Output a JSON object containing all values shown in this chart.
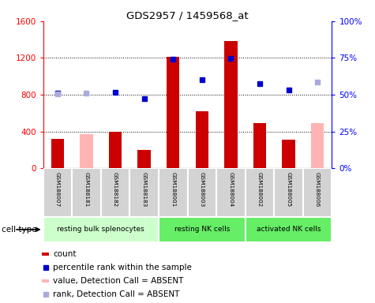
{
  "title": "GDS2957 / 1459568_at",
  "samples": [
    "GSM188007",
    "GSM188181",
    "GSM188182",
    "GSM188183",
    "GSM188001",
    "GSM188003",
    "GSM188004",
    "GSM188002",
    "GSM188005",
    "GSM188006"
  ],
  "count_values": [
    320,
    null,
    400,
    200,
    1210,
    620,
    1380,
    490,
    310,
    null
  ],
  "absent_value_values": [
    null,
    370,
    null,
    null,
    null,
    null,
    null,
    null,
    null,
    490
  ],
  "percentile_present": [
    820,
    null,
    830,
    760,
    1185,
    960,
    1195,
    920,
    850,
    null
  ],
  "absent_rank_values": [
    810,
    820,
    null,
    null,
    null,
    null,
    null,
    null,
    null,
    940
  ],
  "ylim_left": [
    0,
    1600
  ],
  "ylim_right": [
    0,
    100
  ],
  "yticks_left": [
    0,
    400,
    800,
    1200,
    1600
  ],
  "yticks_right": [
    0,
    25,
    50,
    75,
    100
  ],
  "ytick_labels_right": [
    "0%",
    "25%",
    "50%",
    "75%",
    "100%"
  ],
  "bar_color_present": "#cc0000",
  "bar_color_absent": "#ffb3b3",
  "dot_color_present": "#0000cc",
  "dot_color_absent": "#aaaadd",
  "groups": [
    {
      "name": "resting bulk splenocytes",
      "start": 0,
      "end": 3,
      "color": "#ccffcc"
    },
    {
      "name": "resting NK cells",
      "start": 4,
      "end": 6,
      "color": "#66ee66"
    },
    {
      "name": "activated NK cells",
      "start": 7,
      "end": 9,
      "color": "#66ee66"
    }
  ],
  "cell_type_label": "cell type",
  "legend_items": [
    {
      "color": "#cc0000",
      "is_bar": true,
      "label": "count"
    },
    {
      "color": "#0000cc",
      "is_bar": false,
      "label": "percentile rank within the sample"
    },
    {
      "color": "#ffb3b3",
      "is_bar": true,
      "label": "value, Detection Call = ABSENT"
    },
    {
      "color": "#aaaadd",
      "is_bar": false,
      "label": "rank, Detection Call = ABSENT"
    }
  ]
}
